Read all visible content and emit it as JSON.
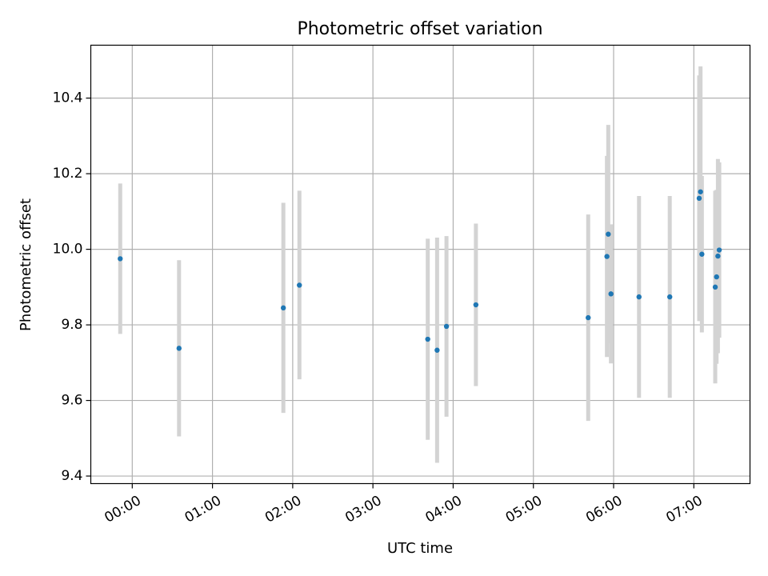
{
  "chart_data": {
    "type": "scatter",
    "title": "Photometric offset variation",
    "xlabel": "UTC time",
    "ylabel": "Photometric offset",
    "x_ticks": [
      "00:00",
      "01:00",
      "02:00",
      "03:00",
      "04:00",
      "05:00",
      "06:00",
      "07:00"
    ],
    "y_ticks": [
      "9.4",
      "9.6",
      "9.8",
      "10.0",
      "10.2",
      "10.4"
    ],
    "xlim": [
      "-00:31",
      "07:42"
    ],
    "ylim": [
      9.38,
      10.54
    ],
    "grid": true,
    "marker_color": "#1f77b4",
    "errorbar_color": "#d3d3d3",
    "points": [
      {
        "x": "-00:09",
        "y": 9.975,
        "ylow": 9.776,
        "yhigh": 10.174
      },
      {
        "x": "00:35",
        "y": 9.738,
        "ylow": 9.505,
        "yhigh": 9.971
      },
      {
        "x": "01:53",
        "y": 9.845,
        "ylow": 9.567,
        "yhigh": 10.123
      },
      {
        "x": "02:05",
        "y": 9.905,
        "ylow": 9.656,
        "yhigh": 10.155
      },
      {
        "x": "03:41",
        "y": 9.762,
        "ylow": 9.496,
        "yhigh": 10.028
      },
      {
        "x": "03:48",
        "y": 9.733,
        "ylow": 9.435,
        "yhigh": 10.031
      },
      {
        "x": "03:55",
        "y": 9.796,
        "ylow": 9.557,
        "yhigh": 10.035
      },
      {
        "x": "04:17",
        "y": 9.853,
        "ylow": 9.638,
        "yhigh": 10.068
      },
      {
        "x": "05:41",
        "y": 9.819,
        "ylow": 9.546,
        "yhigh": 10.092
      },
      {
        "x": "05:55",
        "y": 9.981,
        "ylow": 9.715,
        "yhigh": 10.247
      },
      {
        "x": "05:56",
        "y": 10.04,
        "ylow": 9.751,
        "yhigh": 10.329
      },
      {
        "x": "05:58",
        "y": 9.882,
        "ylow": 9.698,
        "yhigh": 10.066
      },
      {
        "x": "06:19",
        "y": 9.874,
        "ylow": 9.607,
        "yhigh": 10.141
      },
      {
        "x": "06:42",
        "y": 9.874,
        "ylow": 9.607,
        "yhigh": 10.141
      },
      {
        "x": "07:04",
        "y": 10.135,
        "ylow": 9.81,
        "yhigh": 10.46
      },
      {
        "x": "07:05",
        "y": 10.152,
        "ylow": 9.82,
        "yhigh": 10.484
      },
      {
        "x": "07:06",
        "y": 9.987,
        "ylow": 9.78,
        "yhigh": 10.194
      },
      {
        "x": "07:16",
        "y": 9.9,
        "ylow": 9.645,
        "yhigh": 10.155
      },
      {
        "x": "07:17",
        "y": 9.927,
        "ylow": 9.697,
        "yhigh": 10.157
      },
      {
        "x": "07:18",
        "y": 9.982,
        "ylow": 9.725,
        "yhigh": 10.239
      },
      {
        "x": "07:19",
        "y": 9.998,
        "ylow": 9.766,
        "yhigh": 10.23
      }
    ]
  }
}
